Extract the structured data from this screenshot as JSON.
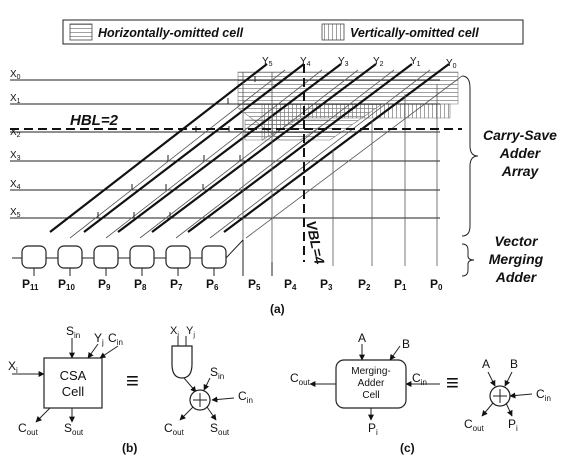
{
  "legend": {
    "horizontal_label": "Horizontally-omitted cell",
    "vertical_label": "Vertically-omitted cell"
  },
  "array": {
    "y_labels": [
      "Y5",
      "Y4",
      "Y3",
      "Y2",
      "Y1",
      "Y0"
    ],
    "x_labels": [
      "X0",
      "X1",
      "X2",
      "X3",
      "X4",
      "X5"
    ],
    "hbl": "HBL=2",
    "vbl": "VBL=4",
    "p_labels": [
      "P11",
      "P10",
      "P9",
      "P8",
      "P7",
      "P6",
      "P5",
      "P4",
      "P3",
      "P2",
      "P1",
      "P0"
    ],
    "csa_bracket": [
      "Carry-Save",
      "Adder",
      "Array"
    ],
    "vma_bracket": [
      "Vector",
      "Merging",
      "Adder"
    ],
    "caption": "(a)"
  },
  "panel_b": {
    "cell_title": [
      "CSA",
      "Cell"
    ],
    "s_in": "S",
    "s_in_sub": "in",
    "y_j": "Y",
    "y_j_sub": "j",
    "c_in": "C",
    "c_in_sub": "in",
    "x_i": "X",
    "x_i_sub": "i",
    "c_out": "C",
    "c_out_sub": "out",
    "s_out": "S",
    "s_out_sub": "out",
    "equiv": "≡",
    "gate_x": "X",
    "gate_x_sub": "i",
    "gate_y": "Y",
    "gate_y_sub": "j",
    "r_s_in": "S",
    "r_s_in_sub": "in",
    "r_c_in": "C",
    "r_c_in_sub": "in",
    "r_c_out": "C",
    "r_c_out_sub": "out",
    "r_s_out": "S",
    "r_s_out_sub": "out",
    "caption": "(b)"
  },
  "panel_c": {
    "cell_title": [
      "Merging-",
      "Adder",
      "Cell"
    ],
    "a": "A",
    "b": "B",
    "c_in": "C",
    "c_in_sub": "in",
    "c_out": "C",
    "c_out_sub": "out",
    "p_i": "P",
    "p_i_sub": "i",
    "equiv": "≡",
    "r_a": "A",
    "r_b": "B",
    "r_c_in": "C",
    "r_c_in_sub": "in",
    "r_c_out": "C",
    "r_c_out_sub": "out",
    "r_p_i": "P",
    "r_p_i_sub": "i",
    "caption": "(c)"
  }
}
